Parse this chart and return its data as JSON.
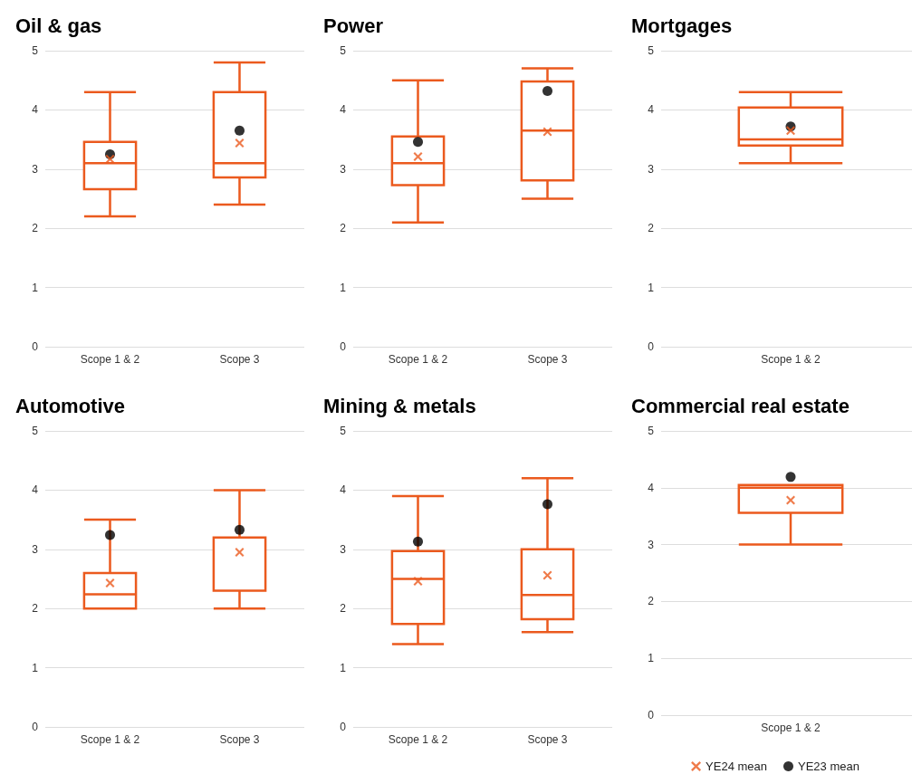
{
  "chart_data": [
    {
      "type": "box",
      "title": "Oil & gas",
      "categories": [
        "Scope 1 & 2",
        "Scope 3"
      ],
      "ylim": [
        0,
        5
      ],
      "yticks": [
        0,
        1,
        2,
        3,
        4,
        5
      ],
      "grid": "y",
      "series": [
        {
          "color": "#eb5a1e",
          "boxes": [
            {
              "low": 2.2,
              "q1": 2.66,
              "median": 3.1,
              "q3": 3.46,
              "high": 4.3
            },
            {
              "low": 2.4,
              "q1": 2.86,
              "median": 3.1,
              "q3": 4.3,
              "high": 4.8
            }
          ]
        },
        {
          "type": "scatter",
          "color": "#eb5a1e",
          "marker": "cross",
          "x": [
            "Scope 1 & 2",
            "Scope 3"
          ],
          "values": [
            3.17,
            3.44
          ]
        },
        {
          "type": "scatter",
          "color": "#000000",
          "marker": "circle",
          "x": [
            "Scope 1 & 2",
            "Scope 3"
          ],
          "values": [
            3.25,
            3.65
          ]
        }
      ]
    },
    {
      "type": "box",
      "title": "Power",
      "categories": [
        "Scope 1 & 2",
        "Scope 3"
      ],
      "ylim": [
        0,
        5
      ],
      "yticks": [
        0,
        1,
        2,
        3,
        4,
        5
      ],
      "grid": "y",
      "series": [
        {
          "color": "#eb5a1e",
          "boxes": [
            {
              "low": 2.1,
              "q1": 2.73,
              "median": 3.1,
              "q3": 3.55,
              "high": 4.5
            },
            {
              "low": 2.5,
              "q1": 2.81,
              "median": 3.65,
              "q3": 4.48,
              "high": 4.7
            }
          ]
        },
        {
          "type": "scatter",
          "color": "#eb5a1e",
          "marker": "cross",
          "x": [
            "Scope 1 & 2",
            "Scope 3"
          ],
          "values": [
            3.21,
            3.63
          ]
        },
        {
          "type": "scatter",
          "color": "#000000",
          "marker": "circle",
          "x": [
            "Scope 1 & 2",
            "Scope 3"
          ],
          "values": [
            3.46,
            4.32
          ]
        }
      ]
    },
    {
      "type": "box",
      "title": "Mortgages",
      "categories": [
        "Scope 1 & 2"
      ],
      "ylim": [
        0,
        5
      ],
      "yticks": [
        0,
        1,
        2,
        3,
        4,
        5
      ],
      "grid": "y",
      "series": [
        {
          "color": "#eb5a1e",
          "boxes": [
            {
              "low": 3.1,
              "q1": 3.4,
              "median": 3.5,
              "q3": 4.04,
              "high": 4.3
            }
          ]
        },
        {
          "type": "scatter",
          "color": "#eb5a1e",
          "marker": "cross",
          "x": [
            "Scope 1 & 2"
          ],
          "values": [
            3.65
          ]
        },
        {
          "type": "scatter",
          "color": "#000000",
          "marker": "circle",
          "x": [
            "Scope 1 & 2"
          ],
          "values": [
            3.72
          ]
        }
      ]
    },
    {
      "type": "box",
      "title": "Automotive",
      "categories": [
        "Scope 1 & 2",
        "Scope 3"
      ],
      "ylim": [
        0,
        5
      ],
      "yticks": [
        0,
        1,
        2,
        3,
        4,
        5
      ],
      "grid": "y",
      "series": [
        {
          "color": "#eb5a1e",
          "boxes": [
            {
              "low": 2.0,
              "q1": 2.0,
              "median": 2.24,
              "q3": 2.6,
              "high": 3.5
            },
            {
              "low": 2.0,
              "q1": 2.3,
              "median": 2.3,
              "q3": 3.2,
              "high": 4.0
            }
          ]
        },
        {
          "type": "scatter",
          "color": "#eb5a1e",
          "marker": "cross",
          "x": [
            "Scope 1 & 2",
            "Scope 3"
          ],
          "values": [
            2.43,
            2.95
          ]
        },
        {
          "type": "scatter",
          "color": "#000000",
          "marker": "circle",
          "x": [
            "Scope 1 & 2",
            "Scope 3"
          ],
          "values": [
            3.24,
            3.33
          ]
        }
      ]
    },
    {
      "type": "box",
      "title": "Mining & metals",
      "categories": [
        "Scope 1 & 2",
        "Scope 3"
      ],
      "ylim": [
        0,
        5
      ],
      "yticks": [
        0,
        1,
        2,
        3,
        4,
        5
      ],
      "grid": "y",
      "series": [
        {
          "color": "#eb5a1e",
          "boxes": [
            {
              "low": 1.4,
              "q1": 1.74,
              "median": 2.5,
              "q3": 2.97,
              "high": 3.9
            },
            {
              "low": 1.6,
              "q1": 1.82,
              "median": 2.23,
              "q3": 3.0,
              "high": 4.2
            }
          ]
        },
        {
          "type": "scatter",
          "color": "#eb5a1e",
          "marker": "cross",
          "x": [
            "Scope 1 & 2",
            "Scope 3"
          ],
          "values": [
            2.46,
            2.56
          ]
        },
        {
          "type": "scatter",
          "color": "#000000",
          "marker": "circle",
          "x": [
            "Scope 1 & 2",
            "Scope 3"
          ],
          "values": [
            3.13,
            3.76
          ]
        }
      ]
    },
    {
      "type": "box",
      "title": "Commercial real estate",
      "categories": [
        "Scope 1 & 2"
      ],
      "ylim": [
        0,
        5
      ],
      "yticks": [
        0,
        1,
        2,
        3,
        4,
        5
      ],
      "grid": "y",
      "legend": "bottom",
      "series": [
        {
          "color": "#eb5a1e",
          "boxes": [
            {
              "low": 3.0,
              "q1": 3.56,
              "median": 4.0,
              "q3": 4.05,
              "high": 4.05
            }
          ]
        },
        {
          "type": "scatter",
          "name": "YE24 mean",
          "color": "#eb5a1e",
          "marker": "cross",
          "x": [
            "Scope 1 & 2"
          ],
          "values": [
            3.78
          ]
        },
        {
          "type": "scatter",
          "name": "YE23 mean",
          "color": "#000000",
          "marker": "circle",
          "x": [
            "Scope 1 & 2"
          ],
          "values": [
            4.19
          ]
        }
      ]
    }
  ]
}
